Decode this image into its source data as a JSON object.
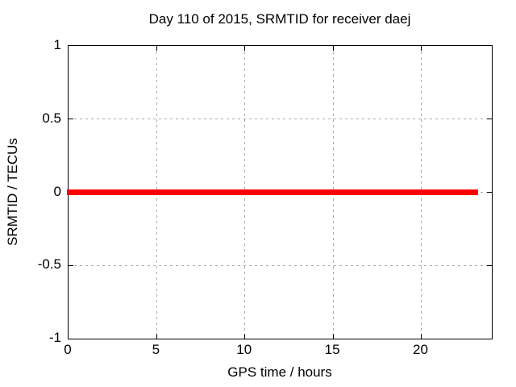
{
  "chart_data": {
    "type": "line",
    "title": "Day 110 of 2015, SRMTID for receiver daej",
    "xlabel": "GPS time / hours",
    "ylabel": "SRMTID / TECUs",
    "xlim": [
      0,
      24
    ],
    "ylim": [
      -1,
      1
    ],
    "grid": "dashed",
    "legend_position": "none",
    "x_ticks": [
      {
        "value": 0,
        "label": "0"
      },
      {
        "value": 5,
        "label": "5"
      },
      {
        "value": 10,
        "label": "10"
      },
      {
        "value": 15,
        "label": "15"
      },
      {
        "value": 20,
        "label": "20"
      }
    ],
    "y_ticks": [
      {
        "value": 1,
        "label": "1"
      },
      {
        "value": 0.5,
        "label": "0.5"
      },
      {
        "value": 0,
        "label": "0"
      },
      {
        "value": -0.5,
        "label": "-0.5"
      },
      {
        "value": -1,
        "label": "-1"
      }
    ],
    "series": [
      {
        "name": "SRMTID",
        "color": "#ff0000",
        "style": "thick horizontal band of dense points at constant value",
        "y_value": 0,
        "segments_x_hours": [
          [
            0,
            8.09
          ],
          [
            8.26,
            9.74
          ],
          [
            9.86,
            17.14
          ],
          [
            17.26,
            17.46
          ],
          [
            17.56,
            23.15
          ]
        ]
      }
    ],
    "colors": {
      "background": "#ffffff",
      "border": "#000000",
      "grid": "#aaaaaa",
      "text": "#000000",
      "series": "#ff0000"
    }
  }
}
